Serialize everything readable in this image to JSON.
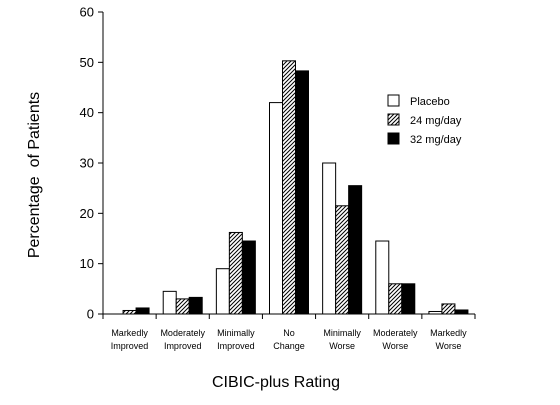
{
  "chart_data": {
    "type": "bar",
    "title": "",
    "xlabel": "CIBIC-plus Rating",
    "ylabel": "Percentage  of Patients",
    "ylim": [
      0,
      60
    ],
    "yticks": [
      0,
      10,
      20,
      30,
      40,
      50,
      60
    ],
    "categories": [
      [
        "Markedly",
        "Improved"
      ],
      [
        "Moderately",
        "Improved"
      ],
      [
        "Minimally",
        "Improved"
      ],
      [
        "No",
        "Change"
      ],
      [
        "Minimally",
        "Worse"
      ],
      [
        "Moderately",
        "Worse"
      ],
      [
        "Markedly",
        "Worse"
      ]
    ],
    "series": [
      {
        "name": "Placebo",
        "values": [
          0,
          4.5,
          9,
          42,
          30,
          14.5,
          0.5
        ],
        "fill": "white"
      },
      {
        "name": "24 mg/day",
        "values": [
          0.7,
          3,
          16.2,
          50.3,
          21.5,
          6,
          2
        ],
        "fill": "hatch"
      },
      {
        "name": "32 mg/day",
        "values": [
          1.2,
          3.3,
          14.5,
          48.3,
          25.5,
          6,
          0.8
        ],
        "fill": "black"
      }
    ],
    "grid": false,
    "legend_position": "right"
  }
}
